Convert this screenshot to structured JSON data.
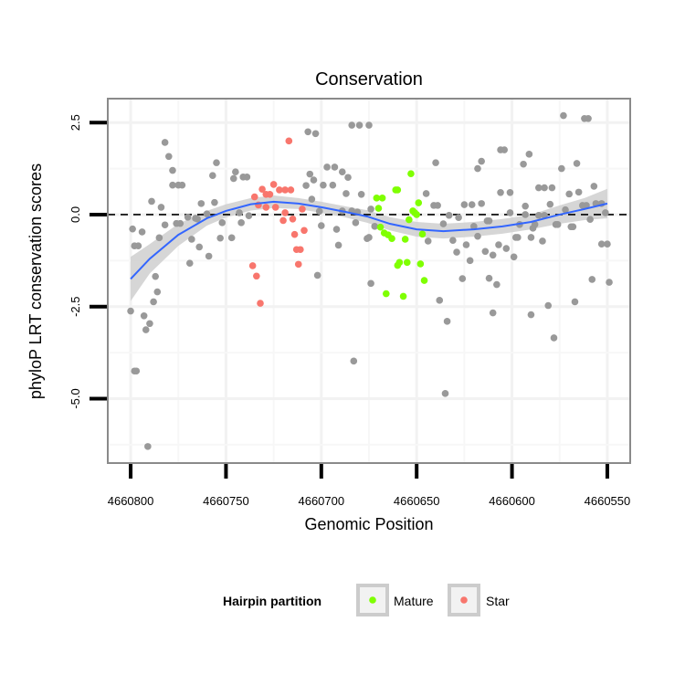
{
  "chart_data": {
    "type": "scatter",
    "title": "Conservation",
    "xlabel": "Genomic Position",
    "ylabel": "phyloP LRT conservation scores",
    "xlim": [
      4660812,
      4660538
    ],
    "x_reversed": true,
    "ylim": [
      -6.75,
      3.15
    ],
    "x_ticks": [
      4660800,
      4660750,
      4660700,
      4660650,
      4660600,
      4660550
    ],
    "x_tick_labels": [
      "4660800",
      "4660750",
      "4660700",
      "4660650",
      "4660600",
      "4660550"
    ],
    "y_ticks": [
      2.5,
      0.0,
      -2.5,
      -5.0
    ],
    "y_tick_labels": [
      "2.5",
      "0.0",
      "-2.5",
      "-5.0"
    ],
    "grid": true,
    "reference_line": {
      "y": 0,
      "style": "dashed"
    },
    "legend": {
      "title": "Hairpin partition",
      "placement": "bottom",
      "entries": [
        {
          "label": "Mature",
          "color": "#7FFF00"
        },
        {
          "label": "Star",
          "color": "#F8766D"
        }
      ]
    },
    "colors": {
      "other": "#999999",
      "Mature": "#7FFF00",
      "Star": "#F8766D",
      "smooth": "#3366FF",
      "band": "#CCCCCC"
    },
    "series": [
      {
        "name": "Other",
        "points": [
          [
            4660782,
            1.96
          ],
          [
            4660780,
            1.58
          ],
          [
            4660778,
            1.2
          ],
          [
            4660778,
            0.8
          ],
          [
            4660775,
            0.8
          ],
          [
            4660773,
            0.8
          ],
          [
            4660789,
            0.36
          ],
          [
            4660784,
            0.2
          ],
          [
            4660799,
            -0.39
          ],
          [
            4660794,
            -0.47
          ],
          [
            4660782,
            -0.28
          ],
          [
            4660798,
            -0.85
          ],
          [
            4660796,
            -0.85
          ],
          [
            4660785,
            -0.63
          ],
          [
            4660787,
            -1.68
          ],
          [
            4660786,
            -2.1
          ],
          [
            4660788,
            -2.37
          ],
          [
            4660800,
            -2.62
          ],
          [
            4660793,
            -2.75
          ],
          [
            4660790,
            -2.96
          ],
          [
            4660792,
            -3.13
          ],
          [
            4660797,
            -4.25
          ],
          [
            4660798,
            -4.25
          ],
          [
            4660791,
            -6.3
          ],
          [
            4660776,
            -0.24
          ],
          [
            4660774,
            -0.24
          ],
          [
            4660770,
            -0.07
          ],
          [
            4660766,
            -0.1
          ],
          [
            4660765,
            -0.12
          ],
          [
            4660768,
            -0.67
          ],
          [
            4660764,
            -0.88
          ],
          [
            4660769,
            -1.32
          ],
          [
            4660759,
            -1.13
          ],
          [
            4660763,
            0.3
          ],
          [
            4660760,
            0.02
          ],
          [
            4660756,
            0.33
          ],
          [
            4660757,
            1.06
          ],
          [
            4660755,
            1.41
          ],
          [
            4660752,
            -0.22
          ],
          [
            4660753,
            -0.64
          ],
          [
            4660747,
            -0.63
          ],
          [
            4660745,
            1.16
          ],
          [
            4660746,
            0.98
          ],
          [
            4660741,
            1.02
          ],
          [
            4660739,
            1.02
          ],
          [
            4660743,
            0.05
          ],
          [
            4660742,
            -0.22
          ],
          [
            4660738,
            -0.03
          ],
          [
            4660707,
            2.25
          ],
          [
            4660703,
            2.2
          ],
          [
            4660684,
            2.43
          ],
          [
            4660680,
            2.43
          ],
          [
            4660675,
            2.43
          ],
          [
            4660706,
            1.1
          ],
          [
            4660704,
            0.94
          ],
          [
            4660708,
            0.79
          ],
          [
            4660705,
            0.42
          ],
          [
            4660701,
            0.09
          ],
          [
            4660700,
            -0.3
          ],
          [
            4660702,
            -1.65
          ],
          [
            4660697,
            1.29
          ],
          [
            4660693,
            1.29
          ],
          [
            4660689,
            1.16
          ],
          [
            4660686,
            1.01
          ],
          [
            4660699,
            0.8
          ],
          [
            4660694,
            0.8
          ],
          [
            4660687,
            0.57
          ],
          [
            4660679,
            0.55
          ],
          [
            4660689,
            0.1
          ],
          [
            4660684,
            0.1
          ],
          [
            4660692,
            -0.4
          ],
          [
            4660691,
            -0.83
          ],
          [
            4660682,
            -0.22
          ],
          [
            4660676,
            -0.65
          ],
          [
            4660683,
            -3.98
          ],
          [
            4660674,
            -1.87
          ],
          [
            4660681,
            0.07
          ],
          [
            4660674,
            0.15
          ],
          [
            4660675,
            -0.62
          ],
          [
            4660672,
            -0.32
          ],
          [
            4660640,
            1.41
          ],
          [
            4660645,
            0.57
          ],
          [
            4660641,
            0.25
          ],
          [
            4660639,
            0.25
          ],
          [
            4660644,
            -0.72
          ],
          [
            4660638,
            -2.33
          ],
          [
            4660634,
            -2.9
          ],
          [
            4660635,
            -4.86
          ],
          [
            4660636,
            -0.25
          ],
          [
            4660633,
            -0.02
          ],
          [
            4660631,
            -0.7
          ],
          [
            4660628,
            -0.08
          ],
          [
            4660625,
            0.27
          ],
          [
            4660621,
            0.27
          ],
          [
            4660629,
            -1.02
          ],
          [
            4660626,
            -1.74
          ],
          [
            4660624,
            -0.82
          ],
          [
            4660622,
            -1.25
          ],
          [
            4660618,
            1.25
          ],
          [
            4660616,
            1.45
          ],
          [
            4660620,
            -0.32
          ],
          [
            4660618,
            -0.59
          ],
          [
            4660616,
            0.3
          ],
          [
            4660613,
            -0.17
          ],
          [
            4660612,
            -0.17
          ],
          [
            4660614,
            -1.0
          ],
          [
            4660612,
            -1.73
          ],
          [
            4660608,
            -1.9
          ],
          [
            4660610,
            -2.67
          ],
          [
            4660610,
            -1.1
          ],
          [
            4660607,
            -0.82
          ],
          [
            4660603,
            -0.92
          ],
          [
            4660599,
            -1.15
          ],
          [
            4660606,
            1.76
          ],
          [
            4660604,
            1.76
          ],
          [
            4660601,
            0.05
          ],
          [
            4660606,
            0.6
          ],
          [
            4660601,
            0.6
          ],
          [
            4660598,
            -0.62
          ],
          [
            4660597,
            -0.62
          ],
          [
            4660596,
            -0.27
          ],
          [
            4660593,
            0.0
          ],
          [
            4660594,
            1.37
          ],
          [
            4660591,
            1.64
          ],
          [
            4660593,
            0.23
          ],
          [
            4660590,
            -2.72
          ],
          [
            4660589,
            -0.37
          ],
          [
            4660588,
            -0.27
          ],
          [
            4660590,
            -0.62
          ],
          [
            4660586,
            -0.02
          ],
          [
            4660583,
            -0.02
          ],
          [
            4660584,
            -0.72
          ],
          [
            4660586,
            0.73
          ],
          [
            4660583,
            0.73
          ],
          [
            4660579,
            0.73
          ],
          [
            4660580,
            0.28
          ],
          [
            4660581,
            -2.47
          ],
          [
            4660578,
            -3.35
          ],
          [
            4660577,
            -0.27
          ],
          [
            4660576,
            -0.27
          ],
          [
            4660574,
            1.25
          ],
          [
            4660573,
            2.69
          ],
          [
            4660572,
            0.13
          ],
          [
            4660570,
            0.56
          ],
          [
            4660569,
            -0.33
          ],
          [
            4660568,
            -0.33
          ],
          [
            4660566,
            1.39
          ],
          [
            4660565,
            0.61
          ],
          [
            4660567,
            -2.37
          ],
          [
            4660563,
            0.25
          ],
          [
            4660561,
            0.25
          ],
          [
            4660562,
            2.61
          ],
          [
            4660560,
            2.61
          ],
          [
            4660559,
            -0.13
          ],
          [
            4660557,
            0.77
          ],
          [
            4660556,
            0.3
          ],
          [
            4660553,
            0.3
          ],
          [
            4660558,
            -1.76
          ],
          [
            4660553,
            -0.8
          ],
          [
            4660550,
            -0.8
          ],
          [
            4660551,
            0.05
          ],
          [
            4660549,
            -1.84
          ]
        ]
      },
      {
        "name": "Star",
        "points": [
          [
            4660717,
            2.0
          ],
          [
            4660731,
            0.69
          ],
          [
            4660725,
            0.82
          ],
          [
            4660722,
            0.67
          ],
          [
            4660719,
            0.67
          ],
          [
            4660716,
            0.67
          ],
          [
            4660735,
            0.48
          ],
          [
            4660729,
            0.55
          ],
          [
            4660727,
            0.55
          ],
          [
            4660733,
            0.26
          ],
          [
            4660729,
            0.2
          ],
          [
            4660724,
            0.2
          ],
          [
            4660719,
            0.05
          ],
          [
            4660710,
            0.15
          ],
          [
            4660720,
            -0.16
          ],
          [
            4660715,
            -0.12
          ],
          [
            4660709,
            -0.43
          ],
          [
            4660714,
            -0.54
          ],
          [
            4660713,
            -0.95
          ],
          [
            4660711,
            -0.95
          ],
          [
            4660712,
            -1.35
          ],
          [
            4660736,
            -1.39
          ],
          [
            4660734,
            -1.67
          ],
          [
            4660732,
            -2.41
          ]
        ]
      },
      {
        "name": "Mature",
        "points": [
          [
            4660653,
            1.11
          ],
          [
            4660661,
            0.67
          ],
          [
            4660660,
            0.67
          ],
          [
            4660671,
            0.45
          ],
          [
            4660668,
            0.45
          ],
          [
            4660670,
            0.17
          ],
          [
            4660649,
            0.32
          ],
          [
            4660651,
            0.05
          ],
          [
            4660650,
            0.0
          ],
          [
            4660652,
            0.1
          ],
          [
            4660654,
            -0.14
          ],
          [
            4660669,
            -0.34
          ],
          [
            4660667,
            -0.5
          ],
          [
            4660665,
            -0.55
          ],
          [
            4660663,
            -0.65
          ],
          [
            4660656,
            -0.67
          ],
          [
            4660647,
            -0.53
          ],
          [
            4660659,
            -1.3
          ],
          [
            4660655,
            -1.3
          ],
          [
            4660660,
            -1.38
          ],
          [
            4660648,
            -1.34
          ],
          [
            4660646,
            -1.79
          ],
          [
            4660666,
            -2.15
          ],
          [
            4660657,
            -2.22
          ]
        ]
      }
    ],
    "smooth": {
      "method": "loess",
      "x": [
        4660800,
        4660790,
        4660775,
        4660760,
        4660750,
        4660737,
        4660725,
        4660712,
        4660700,
        4660688,
        4660676,
        4660664,
        4660650,
        4660636,
        4660620,
        4660605,
        4660590,
        4660575,
        4660562,
        4660550
      ],
      "y": [
        -1.75,
        -1.2,
        -0.55,
        -0.1,
        0.1,
        0.28,
        0.35,
        0.3,
        0.2,
        0.08,
        -0.05,
        -0.25,
        -0.4,
        -0.45,
        -0.4,
        -0.32,
        -0.2,
        0.0,
        0.15,
        0.3
      ],
      "se": [
        0.6,
        0.4,
        0.3,
        0.2,
        0.18,
        0.17,
        0.17,
        0.15,
        0.15,
        0.15,
        0.17,
        0.18,
        0.2,
        0.2,
        0.2,
        0.2,
        0.2,
        0.25,
        0.3,
        0.4
      ]
    }
  }
}
